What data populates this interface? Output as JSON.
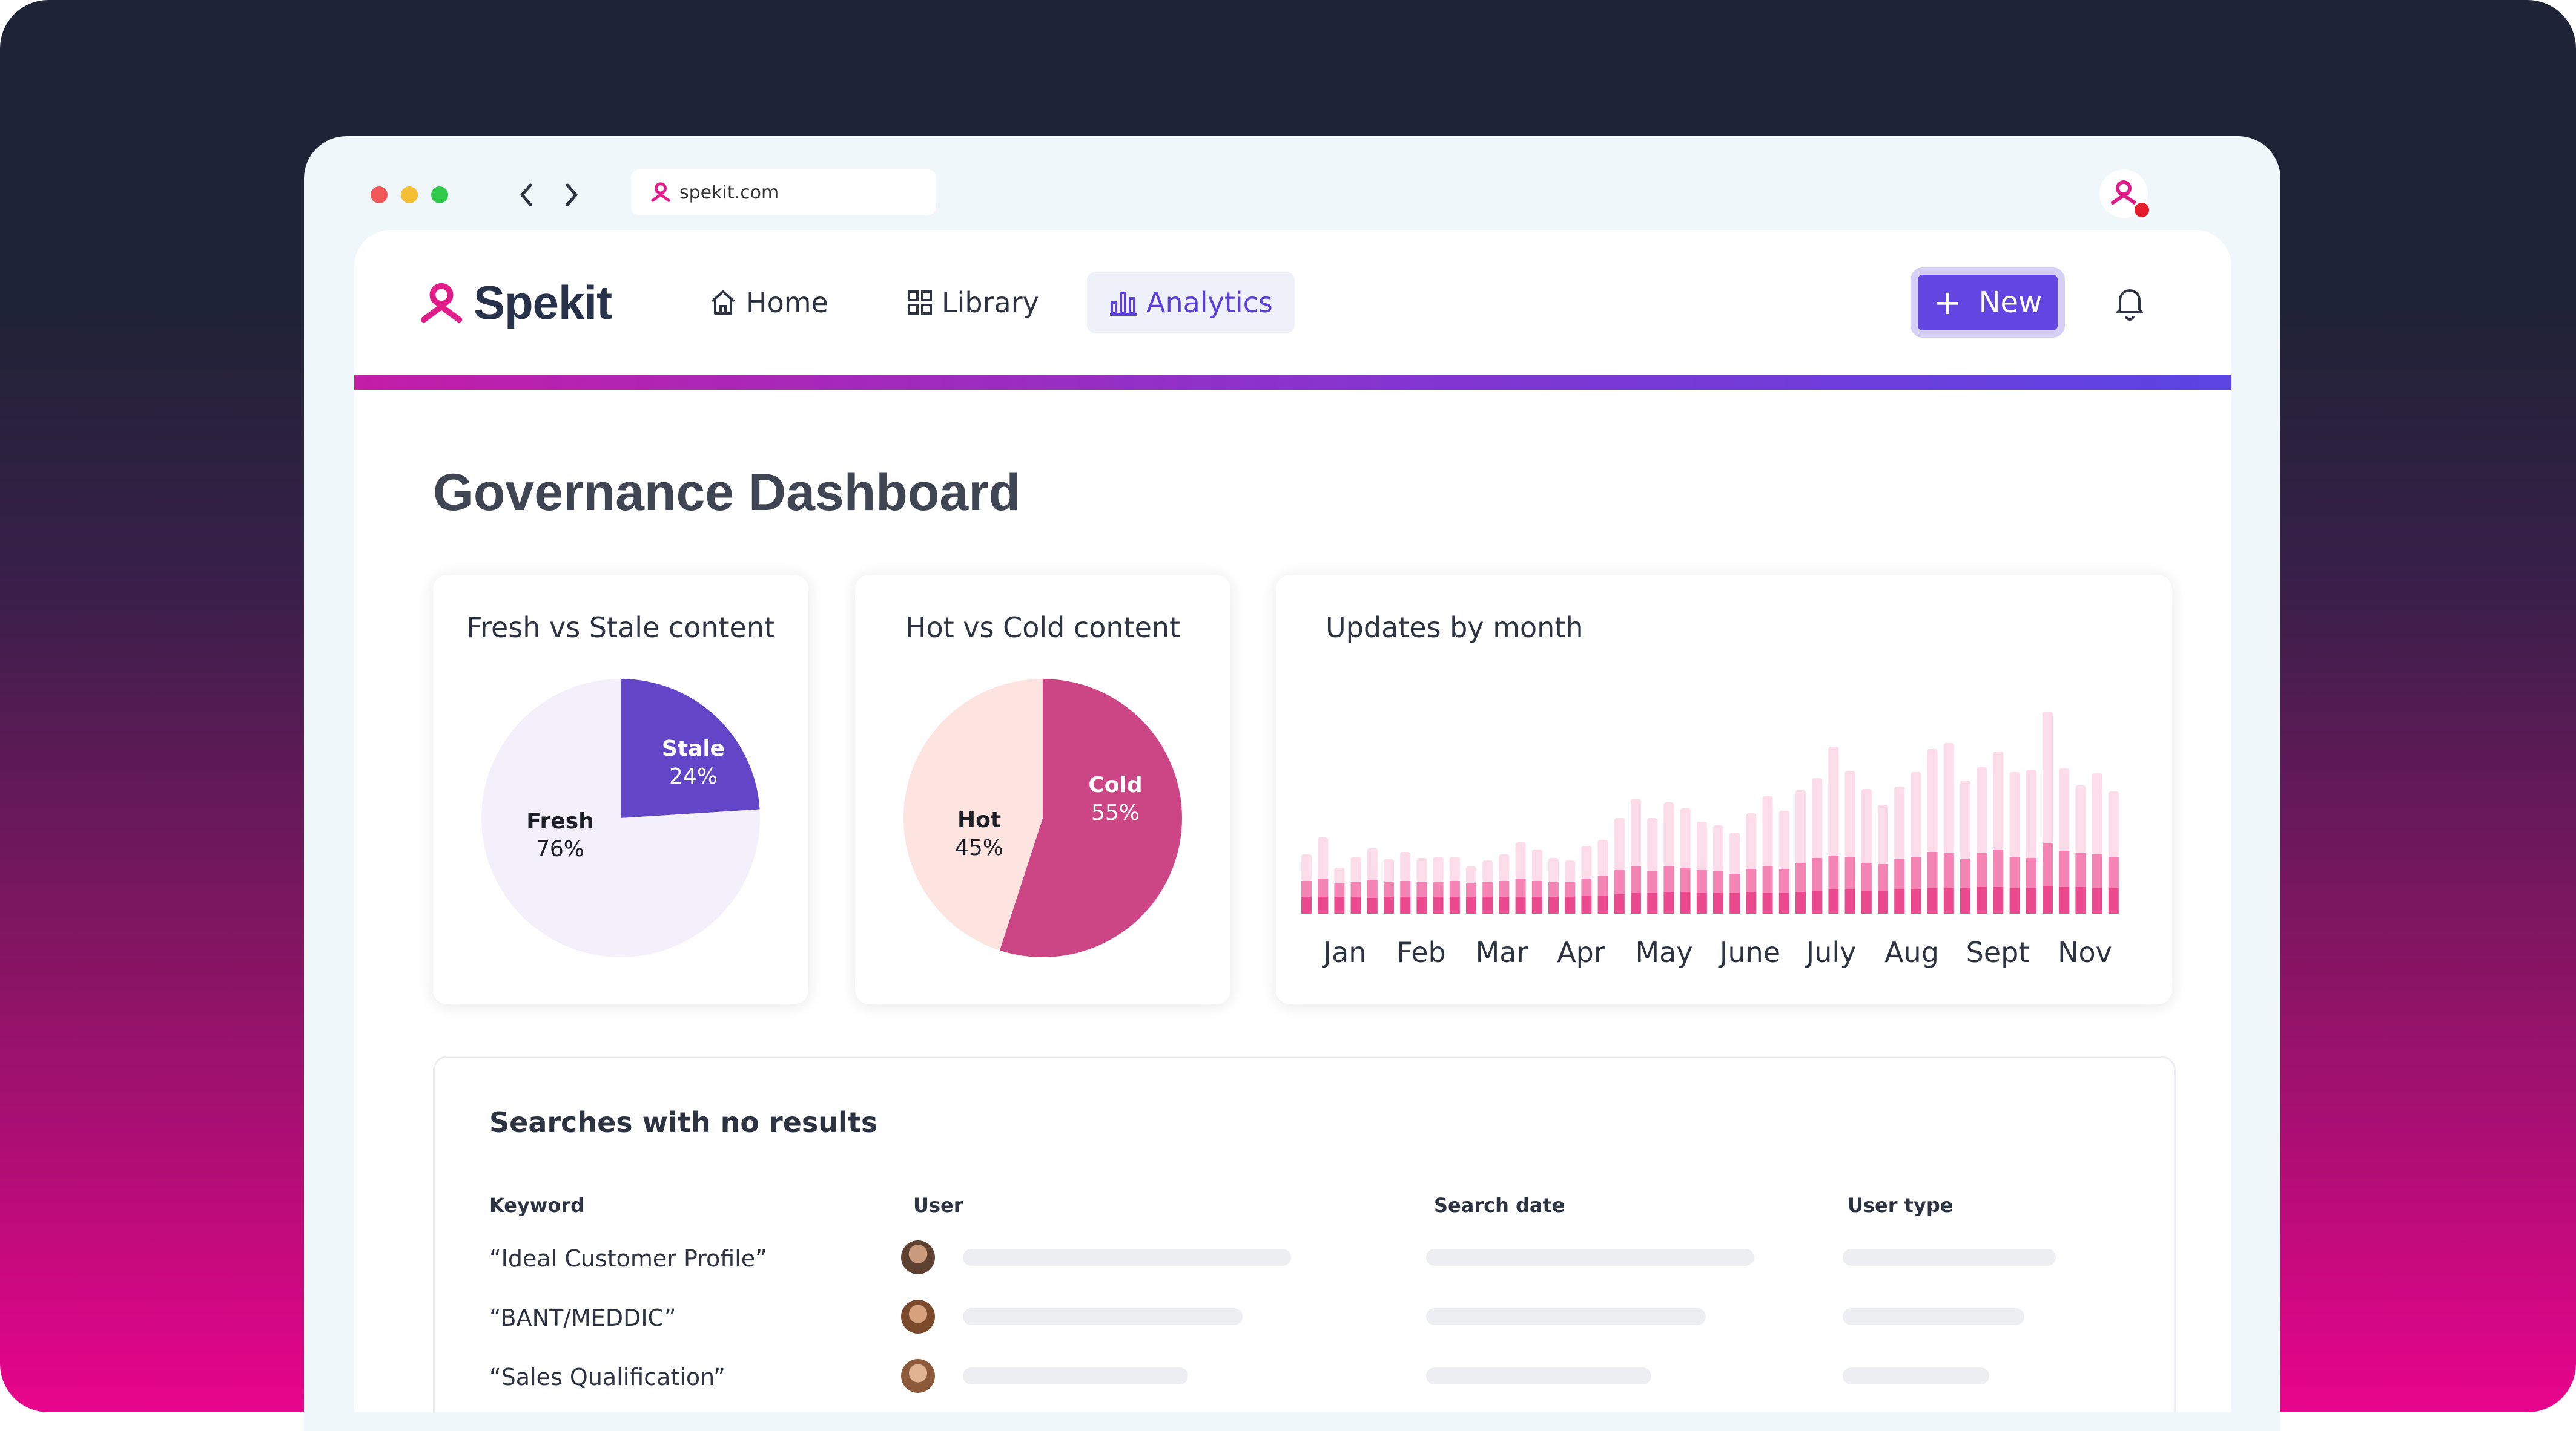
{
  "browser": {
    "url": "spekit.com"
  },
  "app": {
    "brand": "Spekit",
    "nav": [
      {
        "label": "Home"
      },
      {
        "label": "Library"
      },
      {
        "label": "Analytics"
      }
    ],
    "new_button": "New"
  },
  "colors": {
    "accent": "#6346e2",
    "stale": "#6346c8",
    "fresh": "#f3f0fc",
    "cold": "#cc4685",
    "hot": "#fde4e0",
    "bar_light": "#fbdce8",
    "bar_mid": "#f484b4",
    "bar_dark": "#ec4a8f"
  },
  "dashboard": {
    "title": "Governance Dashboard",
    "fresh_stale": {
      "title": "Fresh vs Stale content",
      "slices": [
        {
          "name": "Stale",
          "value": "24%"
        },
        {
          "name": "Fresh",
          "value": "76%"
        }
      ]
    },
    "hot_cold": {
      "title": "Hot vs Cold content",
      "slices": [
        {
          "name": "Cold",
          "value": "55%"
        },
        {
          "name": "Hot",
          "value": "45%"
        }
      ]
    },
    "updates": {
      "title": "Updates by month",
      "month_labels": [
        "Jan",
        "Feb",
        "Mar",
        "Apr",
        "May",
        "June",
        "July",
        "Aug",
        "Sept",
        "Nov"
      ]
    },
    "searches": {
      "title": "Searches with no results",
      "columns": [
        "Keyword",
        "User",
        "Search date",
        "User type"
      ],
      "rows": [
        {
          "keyword": "“Ideal Customer Profile”"
        },
        {
          "keyword": "“BANT/MEDDIC”"
        },
        {
          "keyword": "“Sales Qualification”"
        }
      ]
    }
  },
  "chart_data": [
    {
      "type": "pie",
      "title": "Fresh vs Stale content",
      "categories": [
        "Stale",
        "Fresh"
      ],
      "values": [
        24,
        76
      ]
    },
    {
      "type": "pie",
      "title": "Hot vs Cold content",
      "categories": [
        "Cold",
        "Hot"
      ],
      "values": [
        55,
        45
      ]
    },
    {
      "type": "bar",
      "title": "Updates by month",
      "x_tick_labels": [
        "Jan",
        "Feb",
        "Mar",
        "Apr",
        "May",
        "June",
        "July",
        "Aug",
        "Sept",
        "Nov"
      ],
      "grid": false,
      "stacked": true,
      "series": [
        {
          "values": [
            14,
            14,
            14,
            14,
            13,
            14,
            14,
            14,
            14,
            14,
            14,
            14,
            14,
            14,
            14,
            14,
            14,
            15,
            15,
            16,
            17,
            17,
            18,
            18,
            17,
            17,
            17,
            18,
            17,
            17,
            18,
            19,
            20,
            20,
            19,
            19,
            20,
            20,
            21,
            21,
            21,
            22,
            22,
            21,
            21,
            23,
            22,
            22,
            21,
            21
          ]
        },
        {
          "values": [
            13,
            15,
            11,
            12,
            15,
            12,
            13,
            12,
            12,
            13,
            11,
            12,
            13,
            15,
            13,
            12,
            12,
            14,
            16,
            20,
            22,
            18,
            21,
            20,
            19,
            18,
            16,
            19,
            22,
            20,
            24,
            27,
            28,
            27,
            23,
            22,
            25,
            27,
            30,
            29,
            24,
            28,
            31,
            26,
            25,
            35,
            30,
            28,
            28,
            26
          ]
        },
        {
          "values": [
            22,
            34,
            13,
            21,
            26,
            19,
            24,
            20,
            21,
            20,
            14,
            18,
            22,
            30,
            26,
            20,
            18,
            27,
            30,
            43,
            56,
            44,
            53,
            49,
            40,
            38,
            34,
            46,
            58,
            48,
            60,
            66,
            90,
            71,
            61,
            49,
            60,
            70,
            85,
            91,
            65,
            71,
            81,
            70,
            73,
            109,
            68,
            56,
            67,
            54
          ]
        }
      ]
    }
  ]
}
